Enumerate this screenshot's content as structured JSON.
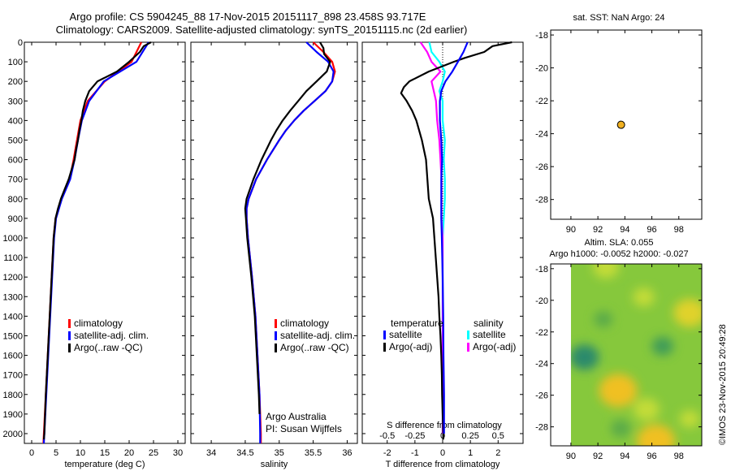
{
  "header": {
    "title_line1": "Argo profile: CS 5904245_88 17-Nov-2015 20151117_898 23.458S 93.717E",
    "title_line2": "Climatology: CARS2009. Satellite-adjusted climatology: synTS_20151115.nc (2d earlier)"
  },
  "side_label": "©IMOS 23-Nov-2015 20:49:28",
  "colors": {
    "climatology": "#ff0000",
    "satellite": "#0000ff",
    "argo": "#000000",
    "sal_satellite": "#00ffff",
    "sal_argo": "#ff00ff",
    "float_marker": "#f0b020"
  },
  "chart_data": [
    {
      "id": "temperature",
      "type": "line",
      "xlabel": "temperature (deg C)",
      "ylabel": "",
      "xlim": [
        -1.5,
        31.5
      ],
      "xticks": [
        0,
        5,
        10,
        15,
        20,
        25,
        30
      ],
      "ylim": [
        0,
        2050
      ],
      "yticks": [
        0,
        100,
        200,
        300,
        400,
        500,
        600,
        700,
        800,
        900,
        1000,
        1100,
        1200,
        1300,
        1400,
        1500,
        1600,
        1700,
        1800,
        1900,
        2000
      ],
      "y_reversed": true,
      "legend": [
        "climatology",
        "satellite-adj. clim.",
        "Argo(..raw -QC)"
      ],
      "series": [
        {
          "name": "climatology",
          "color": "#ff0000",
          "y": [
            0,
            100,
            200,
            300,
            400,
            500,
            600,
            700,
            800,
            900,
            1000,
            1200,
            1400,
            1600,
            1800,
            2000,
            2050
          ],
          "x": [
            22.5,
            20.5,
            15,
            11.5,
            10,
            9.3,
            8.6,
            7.8,
            6.1,
            4.9,
            4.5,
            4.1,
            3.7,
            3.3,
            2.9,
            2.5,
            2.4
          ]
        },
        {
          "name": "satellite-adj. clim.",
          "color": "#0000ff",
          "y": [
            0,
            100,
            200,
            300,
            400,
            500,
            600,
            700,
            800,
            900,
            1000,
            1200,
            1400,
            1600,
            1800,
            2000,
            2050
          ],
          "x": [
            24,
            21.5,
            14.8,
            11.8,
            10.3,
            9.5,
            8.8,
            7.9,
            6.2,
            5.0,
            4.6,
            4.2,
            3.8,
            3.4,
            3.0,
            2.6,
            2.5
          ]
        },
        {
          "name": "Argo(..raw -QC)",
          "color": "#000000",
          "y": [
            0,
            20,
            50,
            100,
            150,
            200,
            250,
            300,
            350,
            400,
            450,
            500,
            550,
            600,
            650,
            700,
            750,
            800,
            850,
            900,
            1000,
            1200,
            1400,
            1600,
            1800,
            2000,
            2030
          ],
          "x": [
            24.5,
            23,
            22.2,
            20,
            17.5,
            13.5,
            11.8,
            11,
            10.5,
            10.2,
            9.8,
            9.5,
            9.1,
            8.8,
            8.2,
            7.6,
            6.8,
            6.0,
            5.4,
            4.9,
            4.5,
            4.1,
            3.7,
            3.3,
            2.9,
            2.6,
            2.5
          ]
        }
      ]
    },
    {
      "id": "salinity",
      "type": "line",
      "xlabel": "salinity",
      "xlim": [
        33.7,
        36.15
      ],
      "xticks": [
        34,
        34.5,
        35,
        35.5,
        36
      ],
      "xticklabels": [
        "34",
        "34.5",
        "35",
        "35.5",
        "36"
      ],
      "ylim": [
        0,
        2050
      ],
      "y_reversed": true,
      "legend": [
        "climatology",
        "satellite-adj. clim.",
        "Argo(..raw -QC)"
      ],
      "annotations": [
        "Argo Australia",
        "PI: Susan Wijffels"
      ],
      "series": [
        {
          "name": "climatology",
          "color": "#ff0000",
          "y": [
            0,
            50,
            100,
            150,
            200,
            250,
            300,
            350,
            400,
            450,
            500,
            600,
            700,
            800,
            850,
            900,
            1000,
            1200,
            1400,
            1600,
            1800,
            2000,
            2050
          ],
          "x": [
            35.5,
            35.65,
            35.78,
            35.82,
            35.78,
            35.68,
            35.52,
            35.36,
            35.22,
            35.1,
            35.0,
            34.82,
            34.66,
            34.55,
            34.52,
            34.52,
            34.54,
            34.6,
            34.65,
            34.68,
            34.71,
            34.73,
            34.73
          ]
        },
        {
          "name": "satellite-adj. clim.",
          "color": "#0000ff",
          "y": [
            0,
            50,
            100,
            150,
            200,
            250,
            300,
            350,
            400,
            450,
            500,
            600,
            700,
            800,
            850,
            900,
            1000,
            1200,
            1400,
            1600,
            1800,
            2000,
            2050
          ],
          "x": [
            35.4,
            35.55,
            35.72,
            35.8,
            35.78,
            35.68,
            35.52,
            35.36,
            35.22,
            35.1,
            35.0,
            34.82,
            34.66,
            34.55,
            34.52,
            34.52,
            34.54,
            34.6,
            34.65,
            34.68,
            34.71,
            34.72,
            34.72
          ]
        },
        {
          "name": "Argo(..raw -QC)",
          "color": "#000000",
          "y": [
            0,
            30,
            60,
            100,
            150,
            200,
            250,
            300,
            350,
            400,
            450,
            500,
            600,
            700,
            800,
            850,
            900,
            1000,
            1200,
            1400,
            1600,
            1800,
            1900
          ],
          "x": [
            35.6,
            35.65,
            35.66,
            35.75,
            35.7,
            35.55,
            35.4,
            35.28,
            35.16,
            35.05,
            34.96,
            34.88,
            34.74,
            34.62,
            34.52,
            34.5,
            34.51,
            34.53,
            34.59,
            34.64,
            34.67,
            34.7,
            34.71
          ]
        }
      ]
    },
    {
      "id": "differences",
      "type": "line",
      "xlabel": "T difference from climatology",
      "xlabel_top": "S difference from climatology",
      "xlim": [
        -2.9,
        2.9
      ],
      "xticks": [
        -2,
        -1,
        0,
        1,
        2
      ],
      "s_ticks": [
        -0.5,
        -0.25,
        0,
        0.25,
        0.5
      ],
      "s_ticklabels": [
        "-0.5",
        "-0.25",
        "0",
        "0.25",
        "0.5"
      ],
      "s_scale": 4,
      "ylim": [
        0,
        2050
      ],
      "y_reversed": true,
      "legend_headers": [
        "temperature",
        "salinity"
      ],
      "legend": [
        "satellite",
        "Argo(-adj)",
        "satellite",
        "Argo(-adj)"
      ],
      "series": [
        {
          "name": "satellite",
          "quantity": "temperature",
          "color": "#0000ff",
          "y": [
            0,
            50,
            100,
            150,
            200,
            250,
            300,
            400,
            500,
            600,
            700,
            800,
            900,
            1000,
            1200,
            1400,
            1600,
            1800,
            2000
          ],
          "x": [
            0.9,
            0.75,
            0.55,
            0.35,
            0.1,
            -0.05,
            -0.1,
            -0.1,
            -0.05,
            -0.02,
            -0.05,
            -0.05,
            -0.05,
            -0.03,
            0.0,
            0.02,
            0.03,
            0.05,
            0.05
          ]
        },
        {
          "name": "Argo(-adj)",
          "quantity": "temperature",
          "color": "#000000",
          "y": [
            0,
            20,
            50,
            80,
            100,
            150,
            200,
            230,
            260,
            300,
            350,
            400,
            450,
            500,
            600,
            700,
            800,
            900,
            1000,
            1100,
            1200,
            1300,
            1400,
            1500,
            1600,
            1700,
            1800,
            1900,
            2000,
            2030
          ],
          "x": [
            2.5,
            1.8,
            1.5,
            0.8,
            0.4,
            -0.5,
            -1.2,
            -1.4,
            -1.5,
            -1.3,
            -1.1,
            -0.95,
            -0.85,
            -0.75,
            -0.6,
            -0.55,
            -0.5,
            -0.35,
            -0.3,
            -0.25,
            -0.2,
            -0.15,
            -0.12,
            -0.08,
            -0.05,
            -0.03,
            -0.02,
            0.0,
            0.02,
            0.02
          ]
        },
        {
          "name": "satellite",
          "quantity": "salinity",
          "color": "#00ffff",
          "y": [
            0,
            50,
            100,
            150,
            200,
            250,
            300,
            400,
            500,
            600,
            700,
            800,
            900,
            1000,
            1200,
            1400,
            1600,
            1800,
            2000
          ],
          "x": [
            -0.12,
            -0.1,
            -0.03,
            0.02,
            0.0,
            -0.03,
            0.0,
            0.0,
            0.02,
            0.01,
            0.02,
            0.02,
            0.01,
            0.0,
            0.0,
            0.0,
            0.0,
            0.0,
            0.0
          ]
        },
        {
          "name": "Argo(-adj)",
          "quantity": "salinity",
          "color": "#ff00ff",
          "y": [
            0,
            50,
            100,
            150,
            200,
            250,
            300,
            400,
            500,
            600,
            700,
            800,
            900,
            1000,
            1200,
            1400,
            1600,
            1800,
            2000
          ],
          "x": [
            -0.2,
            -0.14,
            -0.1,
            -0.02,
            -0.1,
            -0.08,
            -0.06,
            -0.05,
            -0.03,
            -0.02,
            -0.01,
            -0.01,
            -0.01,
            0.0,
            0.0,
            0.0,
            0.0,
            0.0,
            0.0
          ]
        }
      ]
    },
    {
      "id": "sst_map",
      "type": "scatter",
      "title": "sat. SST: NaN  Argo: 24",
      "xlim": [
        88.5,
        99.7
      ],
      "xticks": [
        90,
        92,
        94,
        96,
        98
      ],
      "ylim": [
        -29.2,
        -17.7
      ],
      "yticks": [
        -18,
        -20,
        -22,
        -24,
        -26,
        -28
      ],
      "points": [
        {
          "x": 93.717,
          "y": -23.458
        }
      ]
    },
    {
      "id": "sla_map",
      "type": "heatmap",
      "title_line1": "Altim. SLA: 0.055",
      "title_line2": "Argo h1000: -0.0052  h2000: -0.027",
      "xlim": [
        88.5,
        99.7
      ],
      "xticks": [
        90,
        92,
        94,
        96,
        98
      ],
      "ylim": [
        -29.2,
        -17.7
      ],
      "yticks": [
        -18,
        -20,
        -22,
        -24,
        -26,
        -28
      ],
      "data_xlim": [
        90,
        99.7
      ],
      "blobs": [
        {
          "x": 93.5,
          "y": -25.7,
          "value": 0.18
        },
        {
          "x": 96.3,
          "y": -28.9,
          "value": 0.18
        },
        {
          "x": 98.8,
          "y": -20.8,
          "value": 0.14
        },
        {
          "x": 92.6,
          "y": -17.9,
          "value": 0.1
        },
        {
          "x": 95.4,
          "y": -19.8,
          "value": 0.07
        },
        {
          "x": 95.6,
          "y": -26.9,
          "value": 0.1
        },
        {
          "x": 98.8,
          "y": -27.5,
          "value": 0.06
        },
        {
          "x": 91.0,
          "y": -23.6,
          "value": -0.12
        },
        {
          "x": 96.8,
          "y": -22.9,
          "value": -0.07
        },
        {
          "x": 92.4,
          "y": -21.2,
          "value": -0.05
        },
        {
          "x": 93.7,
          "y": -28.1,
          "value": -0.06
        }
      ]
    }
  ]
}
